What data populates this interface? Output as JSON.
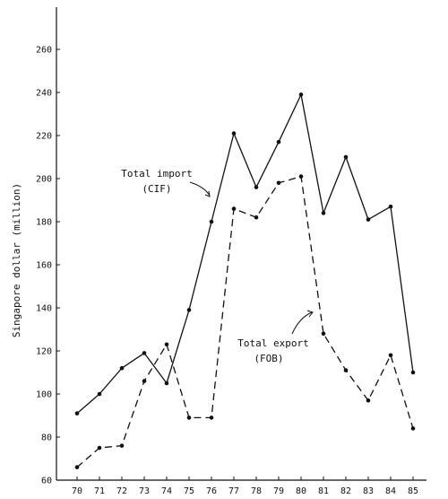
{
  "chart_data": {
    "type": "line",
    "title": "",
    "xlabel": "",
    "ylabel": "Singapore dollar (million)",
    "x": [
      "70",
      "71",
      "72",
      "73",
      "74",
      "75",
      "76",
      "77",
      "78",
      "79",
      "80",
      "81",
      "82",
      "83",
      "84",
      "85"
    ],
    "ylim": [
      60,
      270
    ],
    "yticks": [
      60,
      80,
      100,
      120,
      140,
      160,
      180,
      200,
      220,
      240,
      260
    ],
    "grid": false,
    "series": [
      {
        "name": "Total import (CIF)",
        "style": "solid",
        "values": [
          91,
          100,
          112,
          119,
          105,
          139,
          180,
          221,
          196,
          217,
          239,
          184,
          210,
          181,
          187,
          110
        ]
      },
      {
        "name": "Total export (FOB)",
        "style": "dashed",
        "values": [
          66,
          75,
          76,
          106,
          123,
          89,
          89,
          186,
          182,
          198,
          201,
          128,
          111,
          97,
          118,
          84
        ]
      }
    ],
    "annotations": [
      {
        "lines": [
          "Total import",
          "(CIF)"
        ],
        "series": 0
      },
      {
        "lines": [
          "Total export",
          "(FOB)"
        ],
        "series": 1
      }
    ],
    "color": "#111111"
  }
}
